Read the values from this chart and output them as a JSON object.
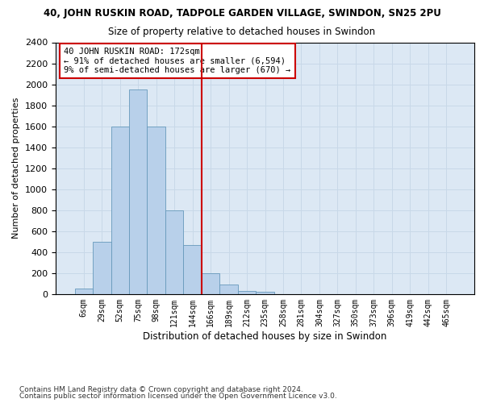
{
  "title_line1": "40, JOHN RUSKIN ROAD, TADPOLE GARDEN VILLAGE, SWINDON, SN25 2PU",
  "title_line2": "Size of property relative to detached houses in Swindon",
  "xlabel": "Distribution of detached houses by size in Swindon",
  "ylabel": "Number of detached properties",
  "categories": [
    "6sqm",
    "29sqm",
    "52sqm",
    "75sqm",
    "98sqm",
    "121sqm",
    "144sqm",
    "166sqm",
    "189sqm",
    "212sqm",
    "235sqm",
    "258sqm",
    "281sqm",
    "304sqm",
    "327sqm",
    "350sqm",
    "373sqm",
    "396sqm",
    "419sqm",
    "442sqm",
    "465sqm"
  ],
  "bar_heights": [
    50,
    500,
    1600,
    1950,
    1600,
    800,
    470,
    200,
    90,
    30,
    20,
    0,
    0,
    0,
    0,
    0,
    0,
    0,
    0,
    0,
    0
  ],
  "bar_color": "#b8d0ea",
  "bar_edge_color": "#6699bb",
  "vline_x": 6.5,
  "vline_color": "#cc0000",
  "annotation_text": "40 JOHN RUSKIN ROAD: 172sqm\n← 91% of detached houses are smaller (6,594)\n9% of semi-detached houses are larger (670) →",
  "annotation_box_color": "#ffffff",
  "annotation_box_edge": "#cc0000",
  "ylim": [
    0,
    2400
  ],
  "yticks": [
    0,
    200,
    400,
    600,
    800,
    1000,
    1200,
    1400,
    1600,
    1800,
    2000,
    2200,
    2400
  ],
  "grid_color": "#c8d8e8",
  "bg_color": "#dce8f4",
  "footer_line1": "Contains HM Land Registry data © Crown copyright and database right 2024.",
  "footer_line2": "Contains public sector information licensed under the Open Government Licence v3.0."
}
